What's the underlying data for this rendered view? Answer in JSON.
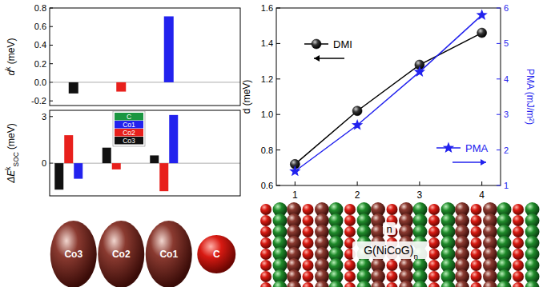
{
  "chart_data": [
    {
      "type": "bar",
      "ylabel": {
        "base": "d",
        "sup": "k",
        "unit": " (meV)"
      },
      "categories": [
        "Co3",
        "Co2",
        "Co1",
        "C"
      ],
      "values": [
        -0.12,
        -0.1,
        0.71,
        null
      ],
      "colors": [
        "#111111",
        "#e8201c",
        "#2222ee",
        "#1a9641"
      ],
      "ylim": [
        -0.25,
        0.8
      ],
      "yticks": [
        -0.2,
        {
          "value": 0,
          "label": "0.0"
        },
        0.2,
        0.4,
        0.6,
        0.8
      ],
      "tick_labels": "y"
    },
    {
      "type": "bar",
      "ylabel": {
        "base": "ΔE",
        "sup": "k",
        "sub": "SOC",
        "unit": " (meV)"
      },
      "categories": [
        "Co3",
        "Co2",
        "Co1",
        "C"
      ],
      "series": [
        {
          "name": "C",
          "color": "#1a9641",
          "values": [
            null,
            null,
            null,
            null
          ]
        },
        {
          "name": "Co1",
          "color": "#2222ee",
          "values": [
            -1.0,
            null,
            3.1,
            null
          ]
        },
        {
          "name": "Co2",
          "color": "#e8201c",
          "values": [
            1.8,
            -0.4,
            -1.8,
            null
          ]
        },
        {
          "name": "Co3",
          "color": "#111111",
          "values": [
            -1.7,
            1.0,
            0.5,
            null
          ]
        }
      ],
      "ylim": [
        -2.1,
        3.4
      ],
      "yticks": [
        0,
        3
      ],
      "legend": "upper center"
    },
    {
      "type": "line",
      "x": [
        1,
        2,
        3,
        4
      ],
      "xlim": [
        0.7,
        4.3
      ],
      "xticks": [
        1,
        2,
        3,
        4
      ],
      "ylabel": "d (meV)",
      "y2label": "PMA (mJ/m²)",
      "ylim": [
        0.6,
        1.6
      ],
      "yticks": [
        0.6,
        0.8,
        {
          "value": 1,
          "label": "1.0"
        },
        1.2,
        1.4,
        1.6
      ],
      "y2lim": [
        1,
        6
      ],
      "y2ticks": [
        1,
        2,
        3,
        4,
        5,
        6
      ],
      "series": [
        {
          "name": "DMI",
          "color": "#000000",
          "marker": "circle",
          "values": [
            0.72,
            1.02,
            1.28,
            1.46
          ]
        },
        {
          "name": "PMA",
          "color": "#2222ee",
          "marker": "star",
          "axis": "y2",
          "values": [
            1.4,
            2.7,
            4.2,
            5.8
          ]
        }
      ],
      "annotations": [
        {
          "text": "n"
        },
        {
          "text": "G(NiCoG)",
          "sub": "n"
        }
      ],
      "legend": "center"
    }
  ]
}
